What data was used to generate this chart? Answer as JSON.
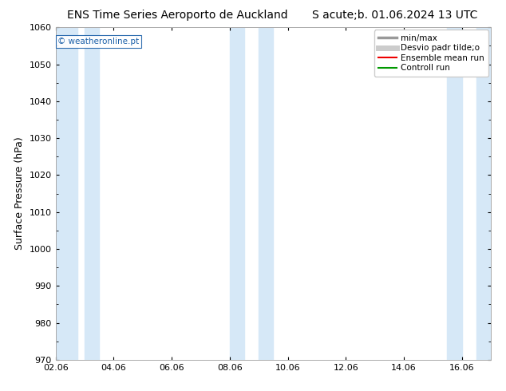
{
  "title_left": "ENS Time Series Aeroporto de Auckland",
  "title_right": "S acute;b. 01.06.2024 13 UTC",
  "ylabel": "Surface Pressure (hPa)",
  "ylim": [
    970,
    1060
  ],
  "yticks": [
    970,
    980,
    990,
    1000,
    1010,
    1020,
    1030,
    1040,
    1050,
    1060
  ],
  "xtick_labels": [
    "02.06",
    "04.06",
    "06.06",
    "08.06",
    "10.06",
    "12.06",
    "14.06",
    "16.06"
  ],
  "xtick_positions": [
    0,
    2,
    4,
    6,
    8,
    10,
    12,
    14
  ],
  "xlim": [
    0,
    15
  ],
  "shaded_bands": [
    {
      "x_start": 0.0,
      "x_end": 0.75
    },
    {
      "x_start": 1.0,
      "x_end": 1.5
    },
    {
      "x_start": 6.0,
      "x_end": 6.5
    },
    {
      "x_start": 7.0,
      "x_end": 7.5
    },
    {
      "x_start": 13.5,
      "x_end": 14.0
    },
    {
      "x_start": 14.5,
      "x_end": 15.0
    }
  ],
  "band_color": "#d6e8f7",
  "band_color2": "#c8dff2",
  "watermark_text": "© weatheronline.pt",
  "watermark_color": "#1a5fa8",
  "background_color": "#ffffff",
  "plot_bg_color": "#ffffff",
  "legend_items": [
    {
      "label": "min/max",
      "color": "#999999",
      "lw": 2.5,
      "style": "-"
    },
    {
      "label": "Desvio padr tilde;o",
      "color": "#cccccc",
      "lw": 5,
      "style": "-"
    },
    {
      "label": "Ensemble mean run",
      "color": "#ee0000",
      "lw": 1.5,
      "style": "-"
    },
    {
      "label": "Controll run",
      "color": "#009900",
      "lw": 1.5,
      "style": "-"
    }
  ],
  "title_fontsize": 10,
  "axis_label_fontsize": 9,
  "tick_fontsize": 8,
  "legend_fontsize": 7.5
}
